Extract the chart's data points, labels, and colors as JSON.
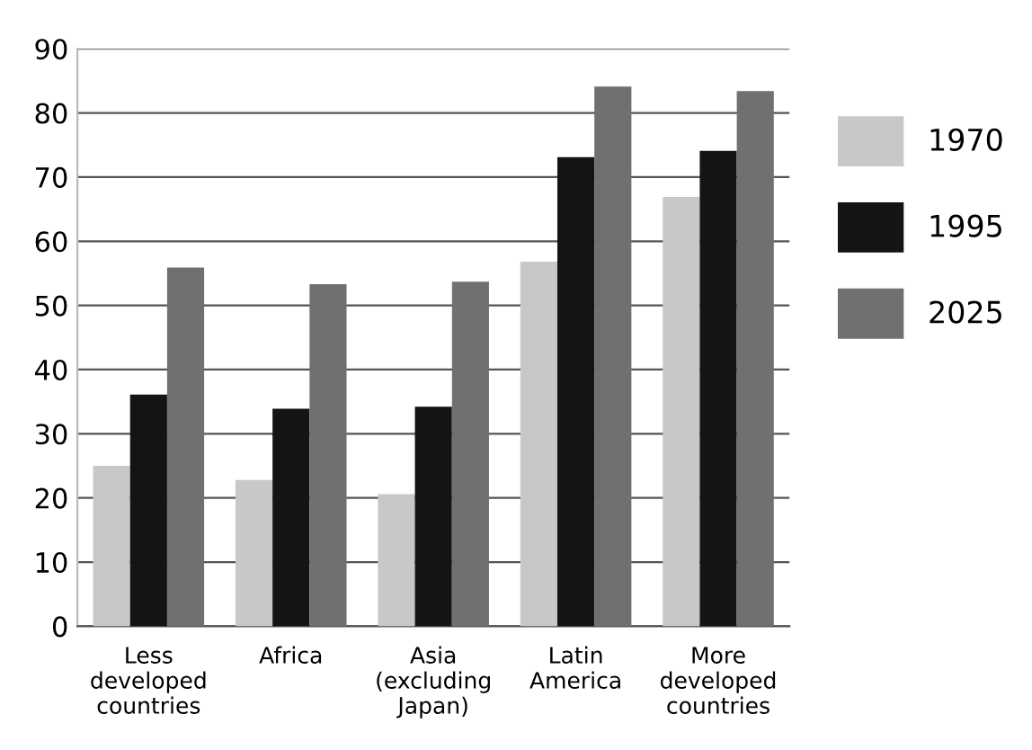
{
  "chart_data": {
    "type": "bar",
    "categories": [
      "Less\ndeveloped\ncountries",
      "Africa",
      "Asia\n(excluding\nJapan)",
      "Latin\nAmerica",
      "More\ndeveloped\ncountries"
    ],
    "series": [
      {
        "name": "1970",
        "color": "#c8c8c8",
        "values": [
          25.0,
          22.8,
          20.6,
          56.8,
          66.9
        ]
      },
      {
        "name": "1995",
        "color": "#141414",
        "values": [
          36.1,
          33.9,
          34.2,
          73.1,
          74.1
        ]
      },
      {
        "name": "2025",
        "color": "#707070",
        "values": [
          55.9,
          53.3,
          53.7,
          84.1,
          83.4
        ]
      }
    ],
    "ylim": [
      0,
      90
    ],
    "yticks": [
      0,
      10,
      20,
      30,
      40,
      50,
      60,
      70,
      80,
      90
    ],
    "grid": "y",
    "legend": "right"
  }
}
